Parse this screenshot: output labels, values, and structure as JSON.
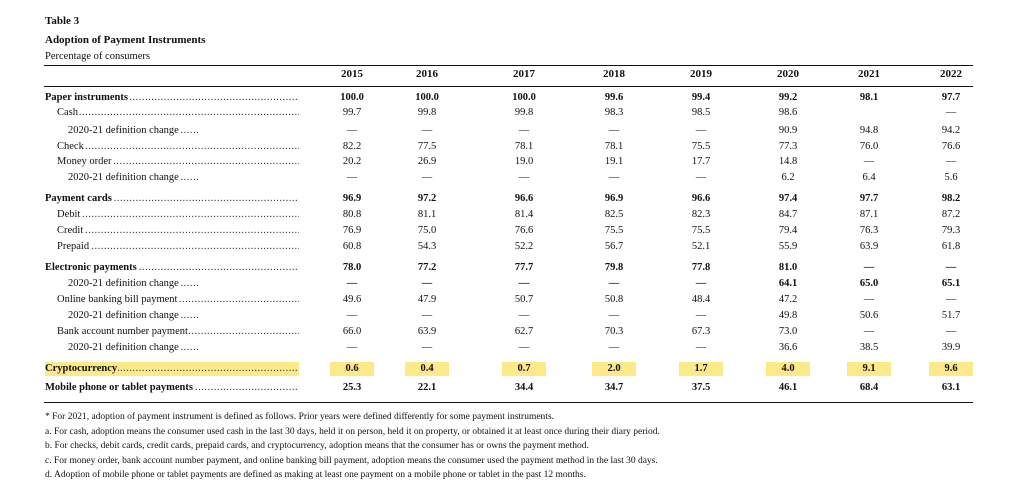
{
  "table": {
    "number": "Table 3",
    "title": "Adoption of Payment Instruments",
    "subtitle": "Percentage of consumers",
    "years": [
      "2015",
      "2016",
      "2017",
      "2018",
      "2019",
      "2020",
      "2021",
      "2022"
    ],
    "rows": [
      {
        "label": "Paper instruments",
        "indent": 0,
        "bold": true,
        "values": [
          "100.0",
          "100.0",
          "100.0",
          "99.6",
          "99.4",
          "99.2",
          "98.1",
          "97.7"
        ]
      },
      {
        "label": "Cash",
        "indent": 1,
        "bold": false,
        "values": [
          "99.7",
          "99.8",
          "99.8",
          "98.3",
          "98.5",
          "98.6",
          "",
          "—"
        ]
      },
      {
        "label": "2020-21 definition change",
        "indent": 2,
        "bold": false,
        "values": [
          "—",
          "—",
          "—",
          "—",
          "—",
          "90.9",
          "94.8",
          "94.2"
        ]
      },
      {
        "label": "Check",
        "indent": 1,
        "bold": false,
        "values": [
          "82.2",
          "77.5",
          "78.1",
          "78.1",
          "75.5",
          "77.3",
          "76.0",
          "76.6"
        ]
      },
      {
        "label": "Money order",
        "indent": 1,
        "bold": false,
        "values": [
          "20.2",
          "26.9",
          "19.0",
          "19.1",
          "17.7",
          "14.8",
          "—",
          "—"
        ]
      },
      {
        "label": "2020-21 definition change",
        "indent": 2,
        "bold": false,
        "values": [
          "—",
          "—",
          "—",
          "—",
          "—",
          "6.2",
          "6.4",
          "5.6"
        ]
      },
      {
        "label": "Payment cards",
        "indent": 0,
        "bold": true,
        "values": [
          "96.9",
          "97.2",
          "96.6",
          "96.9",
          "96.6",
          "97.4",
          "97.7",
          "98.2"
        ]
      },
      {
        "label": "Debit",
        "indent": 1,
        "bold": false,
        "values": [
          "80.8",
          "81.1",
          "81.4",
          "82.5",
          "82.3",
          "84.7",
          "87.1",
          "87.2"
        ]
      },
      {
        "label": "Credit",
        "indent": 1,
        "bold": false,
        "values": [
          "76.9",
          "75.0",
          "76.6",
          "75.5",
          "75.5",
          "79.4",
          "76.3",
          "79.3"
        ]
      },
      {
        "label": "Prepaid",
        "indent": 1,
        "bold": false,
        "values": [
          "60.8",
          "54.3",
          "52.2",
          "56.7",
          "52.1",
          "55.9",
          "63.9",
          "61.8"
        ]
      },
      {
        "label": "Electronic payments",
        "indent": 0,
        "bold": true,
        "values": [
          "78.0",
          "77.2",
          "77.7",
          "79.8",
          "77.8",
          "81.0",
          "—",
          "—"
        ]
      },
      {
        "label": "2020-21 definition change",
        "indent": 2,
        "bold": false,
        "values": [
          "—",
          "—",
          "—",
          "—",
          "—",
          "64.1",
          "65.0",
          "65.1"
        ],
        "boldValues": true
      },
      {
        "label": "Online banking bill payment",
        "indent": 1,
        "bold": false,
        "values": [
          "49.6",
          "47.9",
          "50.7",
          "50.8",
          "48.4",
          "47.2",
          "—",
          "—"
        ]
      },
      {
        "label": "2020-21 definition change",
        "indent": 2,
        "bold": false,
        "values": [
          "—",
          "—",
          "—",
          "—",
          "—",
          "49.8",
          "50.6",
          "51.7"
        ]
      },
      {
        "label": "Bank account number payment",
        "indent": 1,
        "bold": false,
        "values": [
          "66.0",
          "63.9",
          "62.7",
          "70.3",
          "67.3",
          "73.0",
          "—",
          "—"
        ]
      },
      {
        "label": "2020-21 definition change",
        "indent": 2,
        "bold": false,
        "values": [
          "—",
          "—",
          "—",
          "—",
          "—",
          "36.6",
          "38.5",
          "39.9"
        ]
      },
      {
        "label": "Cryptocurrency",
        "indent": 0,
        "bold": true,
        "highlight": true,
        "values": [
          "0.6",
          "0.4",
          "0.7",
          "2.0",
          "1.7",
          "4.0",
          "9.1",
          "9.6"
        ]
      },
      {
        "label": "Mobile phone or tablet payments",
        "indent": 0,
        "bold": true,
        "values": [
          "25.3",
          "22.1",
          "34.4",
          "34.7",
          "37.5",
          "46.1",
          "68.4",
          "63.1"
        ]
      }
    ]
  },
  "notes": [
    "* For 2021, adoption of payment instrument is defined as follows. Prior years were defined differently for some payment instruments.",
    "a. For cash, adoption means the consumer used cash in the last 30 days, held it on person, held it on property, or obtained it at least once during their diary period.",
    "b. For checks, debit cards, credit cards, prepaid cards, and cryptocurrency, adoption means that the consumer has or owns the payment method.",
    "c. For money order, bank account number payment, and online banking bill payment, adoption means the consumer used the payment method in the last 30 days.",
    "d. Adoption of mobile phone or tablet payments are defined as making at least one payment on a mobile phone or tablet in the past 12 months."
  ]
}
